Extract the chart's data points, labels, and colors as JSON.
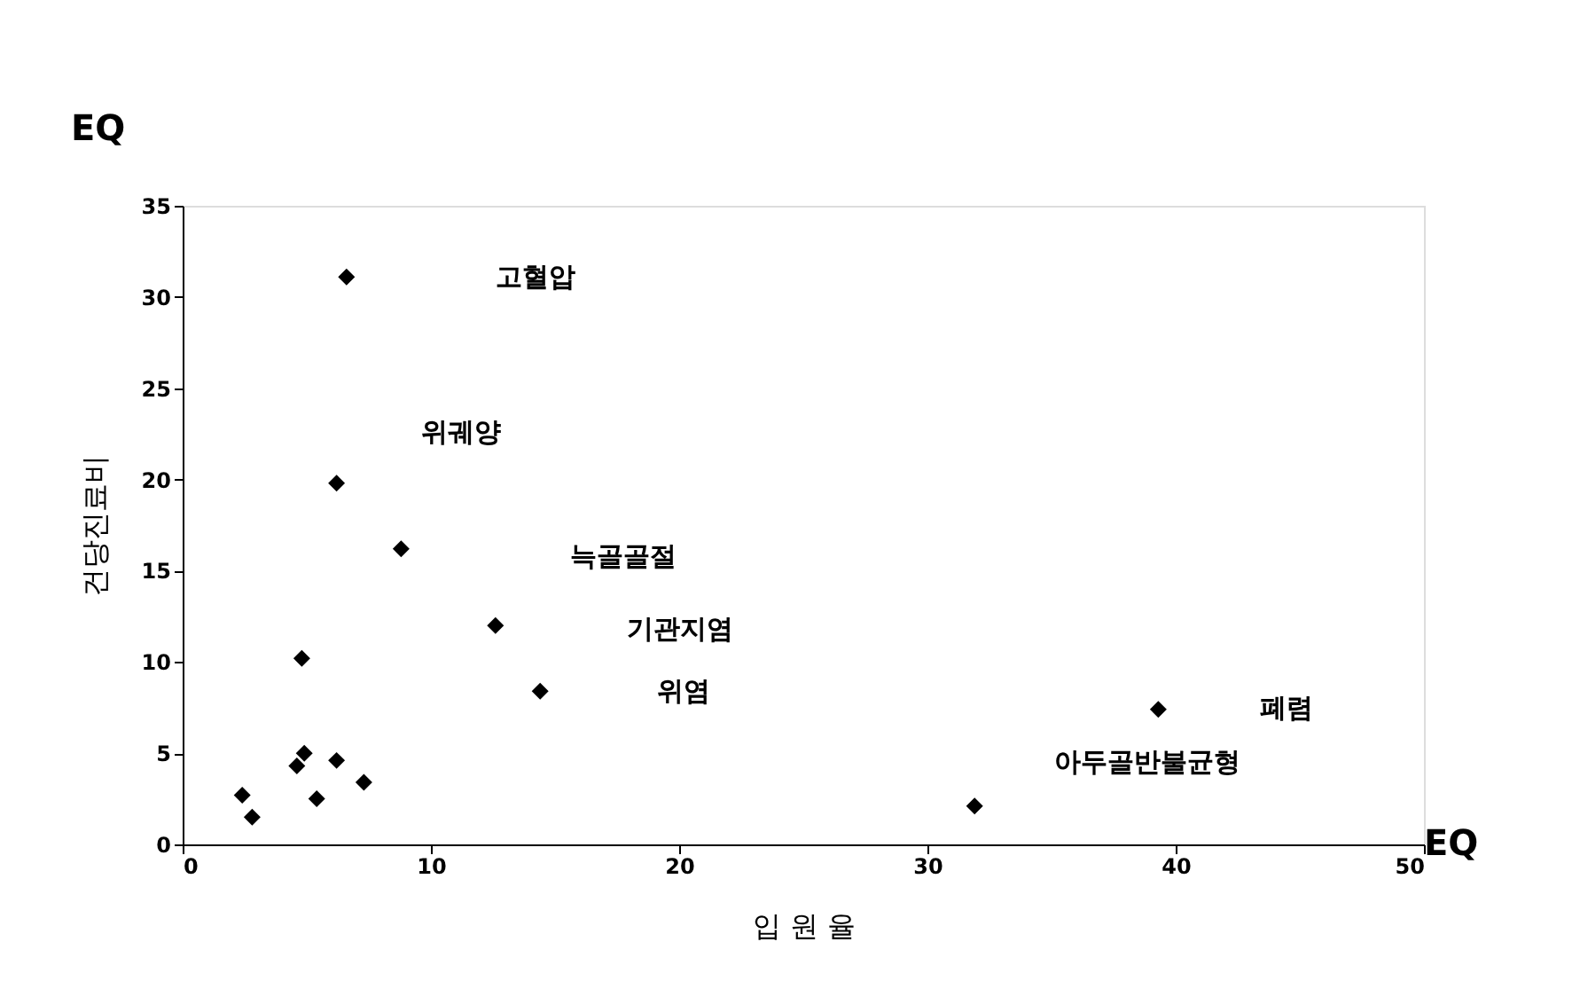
{
  "chart_data": {
    "type": "scatter",
    "xlabel": "입 원 율",
    "ylabel": "건당진료비",
    "x": [
      6.6,
      6.2,
      8.8,
      4.8,
      4.9,
      4.6,
      6.2,
      7.3,
      5.4,
      2.4,
      2.8,
      12.6,
      14.4,
      39.3,
      31.9
    ],
    "values": [
      31.1,
      19.8,
      16.2,
      10.2,
      5.0,
      4.3,
      4.6,
      3.4,
      2.5,
      2.7,
      1.5,
      12.0,
      8.4,
      7.4,
      2.1
    ],
    "color": "#000000",
    "marker": "diamond",
    "xlim": [
      0,
      50
    ],
    "xticks": [
      0,
      10,
      20,
      30,
      40,
      50
    ],
    "ylim": [
      0,
      35
    ],
    "yticks": [
      0,
      5,
      10,
      15,
      20,
      25,
      30,
      35
    ],
    "grid": false,
    "annotations": [
      "EQ",
      "EQ",
      "고혈압",
      "위궤양",
      "늑골골절",
      "기관지염",
      "위염",
      "폐렴",
      "아두골반불균형"
    ]
  }
}
